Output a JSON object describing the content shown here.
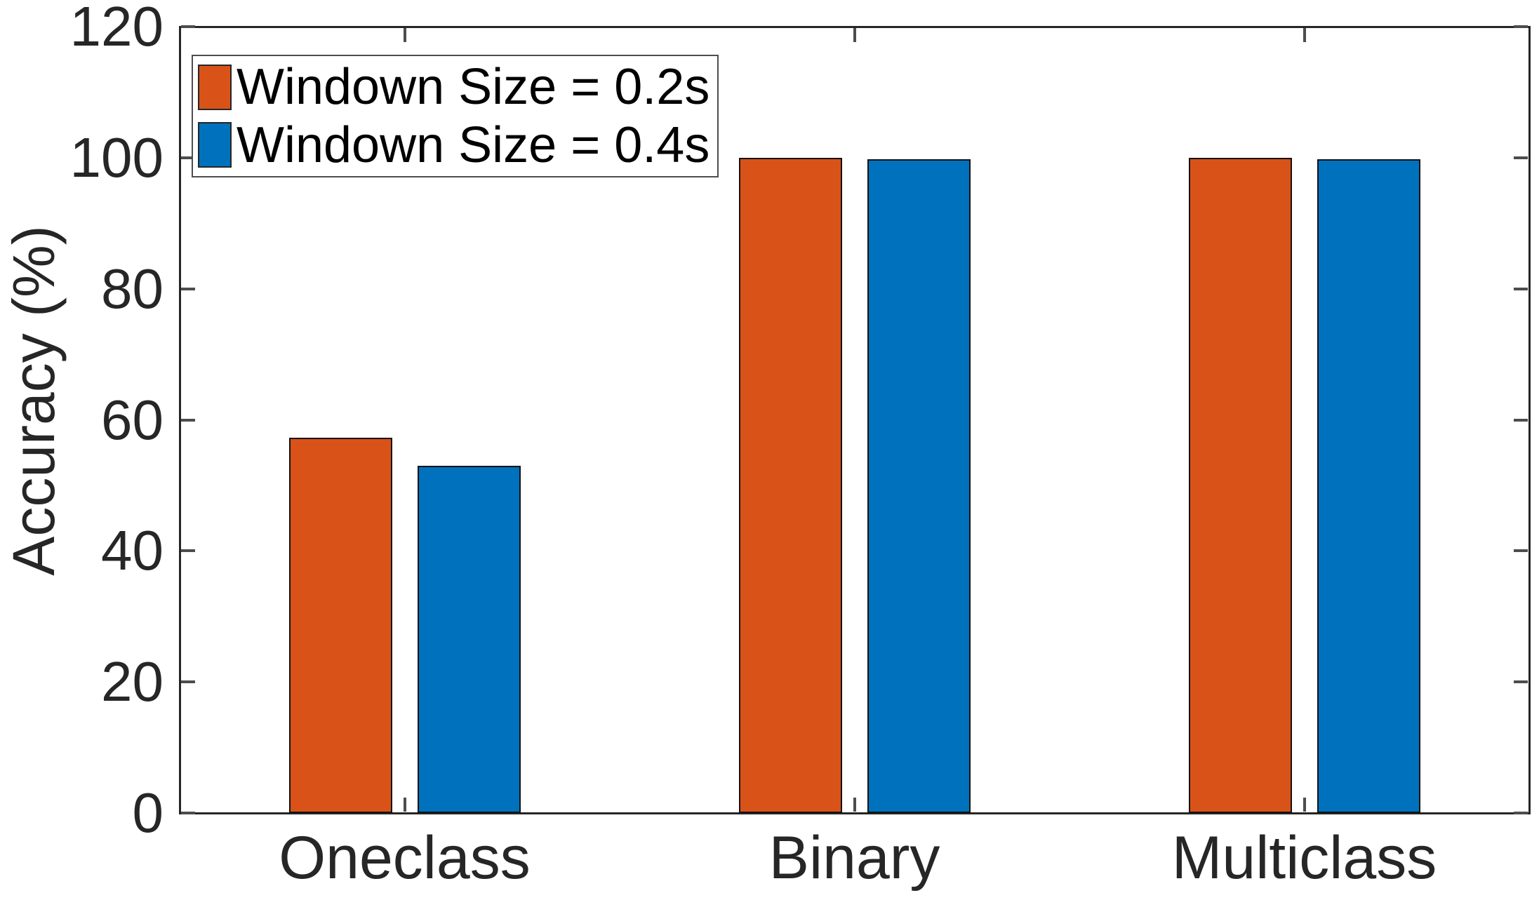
{
  "chart_data": {
    "type": "bar",
    "title": "",
    "xlabel": "",
    "ylabel": "Accuracy (%)",
    "categories": [
      "Oneclass",
      "Binary",
      "Multiclass"
    ],
    "series": [
      {
        "name": "Windown Size = 0.2s",
        "color": "#D95319",
        "values": [
          57.3,
          100,
          100
        ]
      },
      {
        "name": "Windown Size = 0.4s",
        "color": "#0072BD",
        "values": [
          53.0,
          99.8,
          99.8
        ]
      }
    ],
    "ylim": [
      0,
      120
    ],
    "yticks": [
      0,
      20,
      40,
      60,
      80,
      100,
      120
    ],
    "grid": false,
    "legend_position": "top-left",
    "axis_color": "#262626",
    "bar_edge_color": "#121212",
    "background": "#FFFFFF"
  }
}
